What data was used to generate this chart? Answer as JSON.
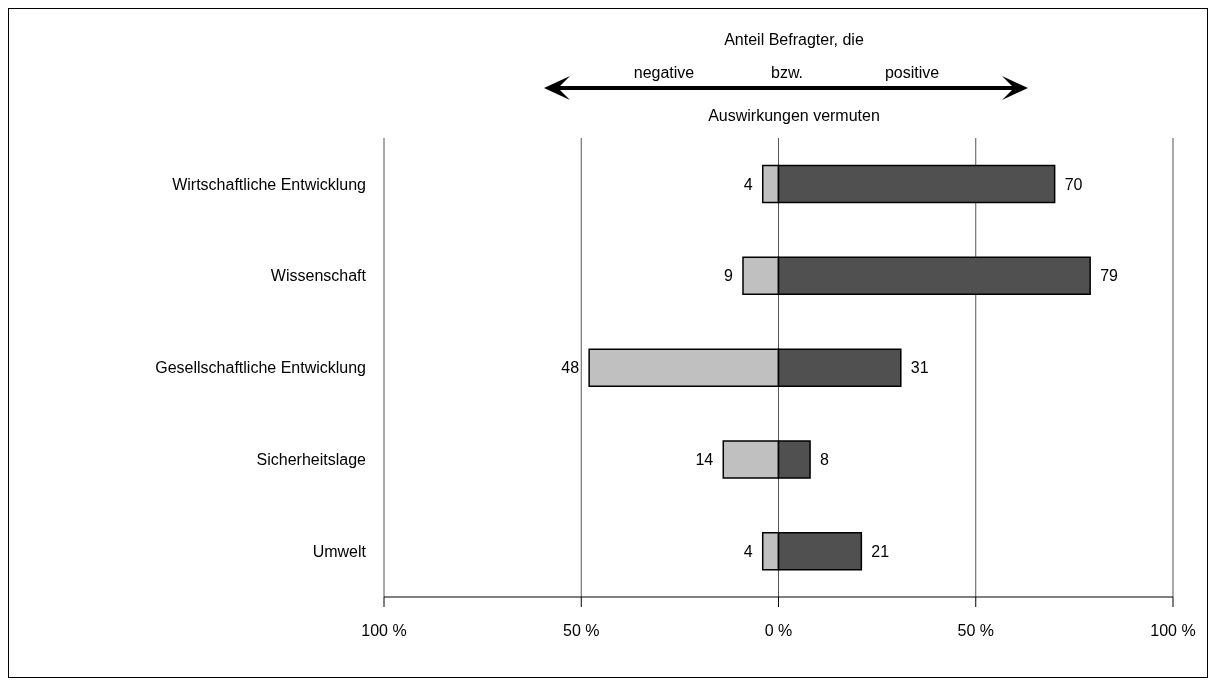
{
  "chart_data": {
    "type": "bar",
    "orientation": "horizontal",
    "categories": [
      "Wirtschaftliche Entwicklung",
      "Wissenschaft",
      "Gesellschaftliche Entwicklung",
      "Sicherheitslage",
      "Umwelt"
    ],
    "series": [
      {
        "color": "#c0c0c0",
        "values": [
          4,
          9,
          48,
          14,
          4
        ],
        "base": [
          -4,
          -9,
          -48,
          -14,
          -4
        ],
        "data_labels": true
      },
      {
        "color": "#505050",
        "values": [
          70,
          79,
          31,
          8,
          21
        ],
        "data_labels": true
      }
    ],
    "xlim": [
      -100,
      100
    ],
    "xticks": [
      {
        "value": -100,
        "label": "100 %"
      },
      {
        "value": -50,
        "label": "50 %"
      },
      {
        "value": 0,
        "label": "0 %"
      },
      {
        "value": 50,
        "label": "50 %"
      },
      {
        "value": 100,
        "label": "100 %"
      }
    ],
    "grid": "x",
    "annotations": [
      "Anteil Befragter, die",
      "negative",
      "bzw.",
      "positive",
      "Auswirkungen vermuten"
    ]
  }
}
